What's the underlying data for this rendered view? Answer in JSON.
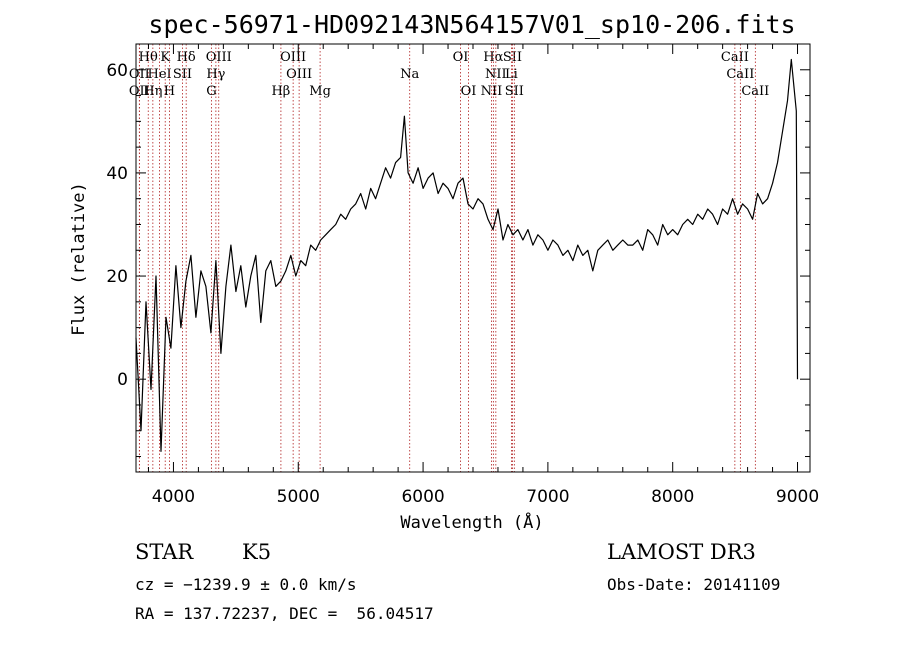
{
  "chart_data": {
    "type": "line",
    "title": "spec-56971-HD092143N564157V01_sp10-206.fits",
    "xlabel": "Wavelength (Å)",
    "ylabel": "Flux (relative)",
    "xlim": [
      3700,
      9100
    ],
    "ylim": [
      -18,
      65
    ],
    "xticks": [
      4000,
      5000,
      6000,
      7000,
      8000,
      9000
    ],
    "yticks": [
      0,
      20,
      40,
      60
    ],
    "series": [
      {
        "name": "flux",
        "x": [
          3700,
          3740,
          3780,
          3820,
          3860,
          3900,
          3940,
          3980,
          4020,
          4060,
          4100,
          4140,
          4180,
          4220,
          4260,
          4300,
          4340,
          4380,
          4420,
          4460,
          4500,
          4540,
          4580,
          4620,
          4660,
          4700,
          4740,
          4780,
          4820,
          4860,
          4900,
          4940,
          4980,
          5020,
          5060,
          5100,
          5140,
          5180,
          5220,
          5260,
          5300,
          5340,
          5380,
          5420,
          5460,
          5500,
          5540,
          5580,
          5620,
          5660,
          5700,
          5740,
          5780,
          5820,
          5850,
          5880,
          5920,
          5960,
          6000,
          6040,
          6080,
          6120,
          6160,
          6200,
          6240,
          6280,
          6320,
          6360,
          6400,
          6440,
          6480,
          6520,
          6560,
          6600,
          6640,
          6680,
          6720,
          6760,
          6800,
          6840,
          6880,
          6920,
          6960,
          7000,
          7040,
          7080,
          7120,
          7160,
          7200,
          7240,
          7280,
          7320,
          7360,
          7400,
          7440,
          7480,
          7520,
          7560,
          7600,
          7640,
          7680,
          7720,
          7760,
          7800,
          7840,
          7880,
          7920,
          7960,
          8000,
          8040,
          8080,
          8120,
          8160,
          8200,
          8240,
          8280,
          8320,
          8360,
          8400,
          8440,
          8480,
          8520,
          8560,
          8600,
          8640,
          8680,
          8720,
          8760,
          8800,
          8840,
          8880,
          8920,
          8950,
          8970,
          8990,
          9000
        ],
        "y": [
          8,
          -10,
          15,
          -2,
          20,
          -14,
          12,
          6,
          22,
          10,
          19,
          24,
          12,
          21,
          18,
          9,
          23,
          5,
          18,
          26,
          17,
          22,
          14,
          20,
          24,
          11,
          21,
          23,
          18,
          19,
          21,
          24,
          20,
          23,
          22,
          26,
          25,
          27,
          28,
          29,
          30,
          32,
          31,
          33,
          34,
          36,
          33,
          37,
          35,
          38,
          41,
          39,
          42,
          43,
          51,
          40,
          38,
          41,
          37,
          39,
          40,
          36,
          38,
          37,
          35,
          38,
          39,
          34,
          33,
          35,
          34,
          31,
          29,
          33,
          27,
          30,
          28,
          29,
          27,
          29,
          26,
          28,
          27,
          25,
          27,
          26,
          24,
          25,
          23,
          26,
          24,
          25,
          21,
          25,
          26,
          27,
          25,
          26,
          27,
          26,
          26,
          27,
          25,
          29,
          28,
          26,
          30,
          28,
          29,
          28,
          30,
          31,
          30,
          32,
          31,
          33,
          32,
          30,
          33,
          32,
          35,
          32,
          34,
          33,
          31,
          36,
          34,
          35,
          38,
          42,
          48,
          54,
          62,
          57,
          52,
          0
        ]
      }
    ],
    "emission_lines": [
      {
        "label": "Hθ",
        "wave": 3798,
        "row": 1
      },
      {
        "label": "K",
        "wave": 3934,
        "row": 1
      },
      {
        "label": "Hδ",
        "wave": 4102,
        "row": 1
      },
      {
        "label": "OIII",
        "wave": 4363,
        "row": 1
      },
      {
        "label": "OIII",
        "wave": 4959,
        "row": 1
      },
      {
        "label": "OI",
        "wave": 6300,
        "row": 1
      },
      {
        "label": "Hα",
        "wave": 6563,
        "row": 1
      },
      {
        "label": "SII",
        "wave": 6716,
        "row": 1
      },
      {
        "label": "CaII",
        "wave": 8498,
        "row": 1
      },
      {
        "label": "OII",
        "wave": 3727,
        "row": 2
      },
      {
        "label": "HeI",
        "wave": 3889,
        "row": 2
      },
      {
        "label": "SII",
        "wave": 4072,
        "row": 2
      },
      {
        "label": "Hγ",
        "wave": 4340,
        "row": 2
      },
      {
        "label": "OIII",
        "wave": 5007,
        "row": 2
      },
      {
        "label": "Na",
        "wave": 5893,
        "row": 2
      },
      {
        "label": "NII",
        "wave": 6583,
        "row": 2
      },
      {
        "label": "Li",
        "wave": 6708,
        "row": 2
      },
      {
        "label": "CaII",
        "wave": 8542,
        "row": 2
      },
      {
        "label": "OII",
        "wave": 3727,
        "row": 3
      },
      {
        "label": "Hη",
        "wave": 3835,
        "row": 3
      },
      {
        "label": "H",
        "wave": 3968,
        "row": 3
      },
      {
        "label": "G",
        "wave": 4304,
        "row": 3
      },
      {
        "label": "Hβ",
        "wave": 4861,
        "row": 3
      },
      {
        "label": "Mg",
        "wave": 5175,
        "row": 3
      },
      {
        "label": "OI",
        "wave": 6364,
        "row": 3
      },
      {
        "label": "NII",
        "wave": 6548,
        "row": 3
      },
      {
        "label": "SII",
        "wave": 6731,
        "row": 3
      },
      {
        "label": "CaII",
        "wave": 8662,
        "row": 3
      }
    ]
  },
  "info": {
    "class": "STAR",
    "subclass": "K5",
    "survey": "LAMOST DR3",
    "cz": "cz = −1239.9 ± 0.0 km/s",
    "obs_date": "Obs-Date: 20141109",
    "coords": "RA = 137.72237, DEC =  56.04517"
  }
}
